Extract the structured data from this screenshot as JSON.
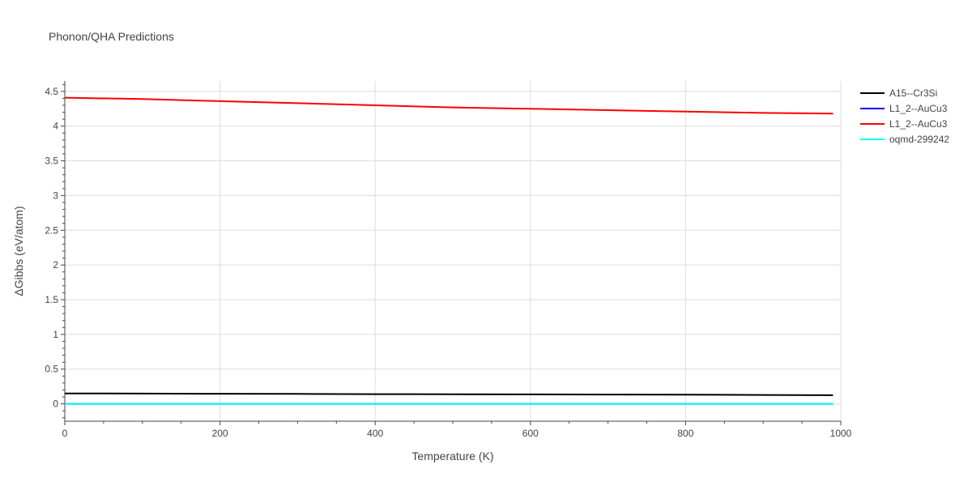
{
  "chart_data": {
    "type": "line",
    "title": "Phonon/QHA Predictions",
    "xlabel": "Temperature (K)",
    "ylabel": "ΔGibbs (eV/atom)",
    "xlim": [
      0,
      1000
    ],
    "ylim": [
      -0.25,
      4.65
    ],
    "x_ticks": [
      0,
      200,
      400,
      600,
      800,
      1000
    ],
    "x_tick_labels": [
      "0",
      "200",
      "400",
      "600",
      "800",
      "1000"
    ],
    "y_ticks": [
      0,
      0.5,
      1,
      1.5,
      2,
      2.5,
      3,
      3.5,
      4,
      4.5
    ],
    "y_tick_labels": [
      "0",
      "0.5",
      "1",
      "1.5",
      "2",
      "2.5",
      "3",
      "3.5",
      "4",
      "4.5"
    ],
    "grid": true,
    "legend_position": "top-right",
    "series": [
      {
        "name": "A15--Cr3Si",
        "color": "#000000",
        "x": [
          0,
          100,
          200,
          300,
          400,
          500,
          600,
          700,
          800,
          900,
          990
        ],
        "y": [
          0.15,
          0.148,
          0.145,
          0.143,
          0.14,
          0.138,
          0.136,
          0.134,
          0.131,
          0.128,
          0.125
        ]
      },
      {
        "name": "L1_2--AuCu3",
        "color": "#0000ff",
        "x": [
          0,
          990
        ],
        "y": [
          0,
          0
        ]
      },
      {
        "name": "L1_2--AuCu3",
        "color": "#ff0000",
        "x": [
          0,
          100,
          200,
          300,
          400,
          500,
          600,
          700,
          800,
          900,
          990
        ],
        "y": [
          4.41,
          4.39,
          4.36,
          4.33,
          4.3,
          4.27,
          4.25,
          4.23,
          4.21,
          4.19,
          4.18
        ]
      },
      {
        "name": "oqmd-299242",
        "color": "#00ffff",
        "x": [
          0,
          990
        ],
        "y": [
          0,
          0
        ]
      }
    ]
  }
}
